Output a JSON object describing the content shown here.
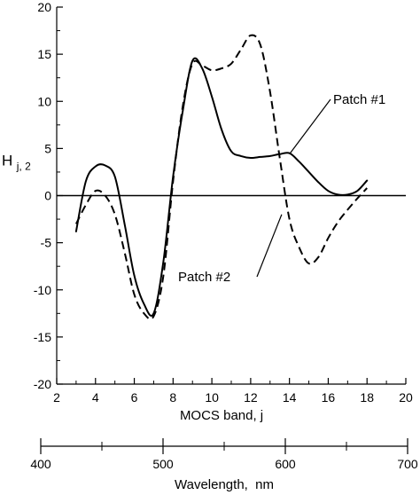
{
  "chart_data": {
    "type": "line",
    "xlabel": "MOCS band, j",
    "ylabel_main": "H",
    "ylabel_sub": "j, 2",
    "xlim": [
      2,
      20
    ],
    "ylim": [
      -20,
      20
    ],
    "xticks": [
      2,
      4,
      6,
      8,
      10,
      12,
      14,
      16,
      18,
      20
    ],
    "yticks": [
      20,
      15,
      10,
      5,
      0,
      -5,
      -10,
      -15,
      -20
    ],
    "grid": false,
    "secondary_axis": {
      "label": "Wavelength,  nm",
      "lim": [
        400,
        700
      ],
      "ticks": [
        400,
        500,
        600,
        700
      ]
    },
    "series": [
      {
        "name": "Patch #1",
        "style": "solid",
        "x": [
          3.0,
          3.5,
          4.0,
          4.5,
          5.0,
          5.5,
          6.0,
          6.5,
          7.0,
          7.5,
          8.0,
          8.5,
          9.0,
          9.5,
          10.0,
          10.5,
          11.0,
          11.5,
          12.0,
          12.5,
          13.0,
          13.5,
          14.0,
          14.5,
          15.0,
          15.5,
          16.0,
          16.5,
          17.0,
          17.5,
          18.0
        ],
        "y": [
          -3.8,
          1.5,
          3.1,
          3.2,
          2.0,
          -3.0,
          -8.5,
          -11.5,
          -12.5,
          -7.0,
          2.0,
          9.0,
          14.3,
          13.5,
          10.5,
          7.0,
          4.7,
          4.2,
          4.0,
          4.1,
          4.2,
          4.4,
          4.5,
          3.6,
          2.5,
          1.4,
          0.5,
          0.1,
          0.1,
          0.5,
          1.6
        ]
      },
      {
        "name": "Patch #2",
        "style": "dashed",
        "x": [
          3.0,
          3.5,
          4.0,
          4.5,
          5.0,
          5.5,
          6.0,
          6.5,
          7.0,
          7.5,
          8.0,
          8.5,
          9.0,
          9.5,
          10.0,
          10.5,
          11.0,
          11.5,
          12.0,
          12.5,
          13.0,
          13.5,
          14.0,
          14.5,
          15.0,
          15.5,
          16.0,
          16.5,
          17.0,
          17.5,
          18.0
        ],
        "y": [
          -3.0,
          -1.0,
          0.5,
          0.0,
          -2.0,
          -6.0,
          -10.5,
          -12.5,
          -12.8,
          -8.5,
          1.5,
          9.5,
          14.0,
          13.8,
          13.3,
          13.5,
          14.0,
          15.5,
          17.0,
          16.0,
          11.0,
          4.0,
          -2.5,
          -5.5,
          -7.2,
          -6.5,
          -4.5,
          -2.8,
          -1.5,
          -0.3,
          0.8
        ]
      }
    ],
    "annotations": [
      {
        "text": "Patch #1",
        "series": "Patch #1"
      },
      {
        "text": "Patch #2",
        "series": "Patch #2"
      }
    ]
  }
}
